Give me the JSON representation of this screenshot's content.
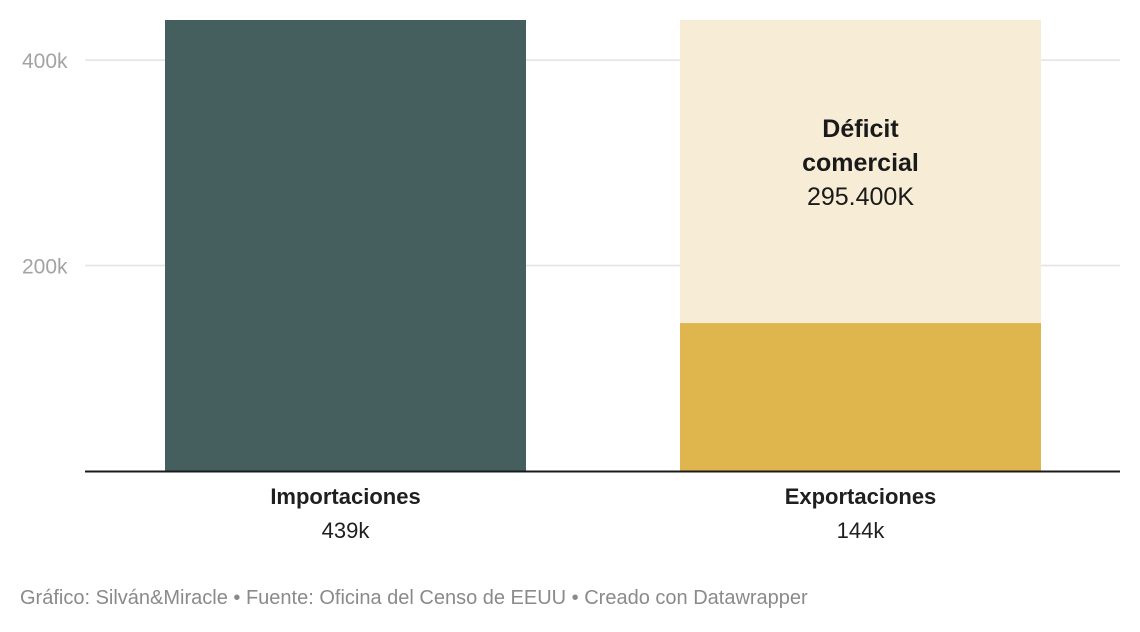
{
  "chart_data": {
    "type": "bar",
    "categories": [
      "Importaciones",
      "Exportaciones"
    ],
    "value_labels": [
      "439k",
      "144k"
    ],
    "series": [
      {
        "values": [
          439,
          144
        ],
        "colors": [
          "#445f5e",
          "#dfb64d"
        ]
      }
    ],
    "deficit": {
      "from": 144,
      "to": 439,
      "title_lines": [
        "Déficit",
        "comercial"
      ],
      "value_label": "295.400K",
      "color": "#f7edd6"
    },
    "yticks": [
      200,
      400
    ],
    "ytick_labels": [
      "200k",
      "400k"
    ],
    "ylim": [
      0,
      439
    ],
    "grid": true,
    "unit": "k"
  },
  "footer": "Gráfico: Silván&Miracle • Fuente: Oficina del Censo de EEUU • Creado con Datawrapper",
  "colors": {
    "grid": "#e3e3e3",
    "axis": "#1a1a1a",
    "tick_text": "#a3a3a3"
  }
}
